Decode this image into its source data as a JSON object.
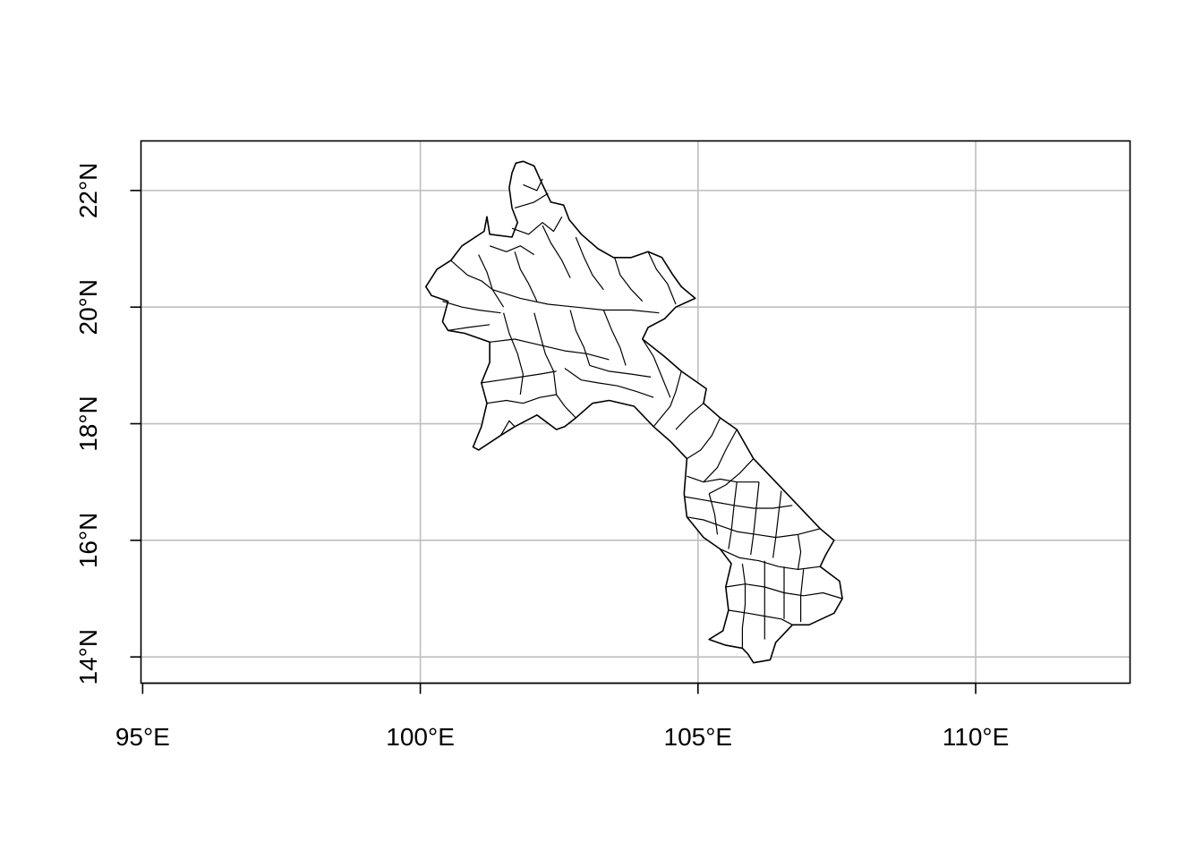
{
  "map": {
    "projection": "longitude-latitude",
    "x_ticks": [
      {
        "value": 95,
        "label": "95°E"
      },
      {
        "value": 100,
        "label": "100°E"
      },
      {
        "value": 105,
        "label": "105°E"
      },
      {
        "value": 110,
        "label": "110°E"
      }
    ],
    "y_ticks": [
      {
        "value": 14,
        "label": "14°N"
      },
      {
        "value": 16,
        "label": "16°N"
      },
      {
        "value": 18,
        "label": "18°N"
      },
      {
        "value": 20,
        "label": "20°N"
      },
      {
        "value": 22,
        "label": "22°N"
      }
    ],
    "xlim": [
      94.97,
      112.78
    ],
    "ylim": [
      13.55,
      22.85
    ],
    "grid": true,
    "colors": {
      "grid": "#bebebe",
      "outline": "#000000",
      "fill": "#ffffff"
    },
    "region_outline": [
      [
        101.72,
        22.47
      ],
      [
        101.85,
        22.5
      ],
      [
        102.05,
        22.42
      ],
      [
        102.2,
        22.1
      ],
      [
        102.35,
        21.8
      ],
      [
        102.58,
        21.75
      ],
      [
        102.68,
        21.5
      ],
      [
        102.9,
        21.25
      ],
      [
        103.2,
        21.0
      ],
      [
        103.48,
        20.85
      ],
      [
        103.8,
        20.85
      ],
      [
        104.1,
        20.95
      ],
      [
        104.35,
        20.85
      ],
      [
        104.55,
        20.55
      ],
      [
        104.7,
        20.35
      ],
      [
        104.95,
        20.15
      ],
      [
        104.6,
        20.0
      ],
      [
        104.4,
        19.8
      ],
      [
        104.1,
        19.65
      ],
      [
        104.0,
        19.45
      ],
      [
        104.4,
        19.15
      ],
      [
        104.7,
        18.9
      ],
      [
        105.15,
        18.6
      ],
      [
        105.1,
        18.35
      ],
      [
        105.4,
        18.1
      ],
      [
        105.7,
        17.9
      ],
      [
        106.0,
        17.4
      ],
      [
        106.3,
        17.1
      ],
      [
        106.6,
        16.8
      ],
      [
        106.9,
        16.5
      ],
      [
        107.2,
        16.2
      ],
      [
        107.45,
        16.0
      ],
      [
        107.3,
        15.75
      ],
      [
        107.2,
        15.55
      ],
      [
        107.55,
        15.3
      ],
      [
        107.6,
        15.0
      ],
      [
        107.45,
        14.75
      ],
      [
        107.0,
        14.55
      ],
      [
        106.7,
        14.55
      ],
      [
        106.5,
        14.35
      ],
      [
        106.4,
        14.25
      ],
      [
        106.3,
        13.95
      ],
      [
        106.0,
        13.9
      ],
      [
        105.9,
        14.05
      ],
      [
        105.8,
        14.15
      ],
      [
        105.5,
        14.2
      ],
      [
        105.2,
        14.3
      ],
      [
        105.45,
        14.45
      ],
      [
        105.55,
        14.8
      ],
      [
        105.5,
        15.2
      ],
      [
        105.6,
        15.6
      ],
      [
        105.4,
        15.85
      ],
      [
        105.1,
        16.05
      ],
      [
        104.8,
        16.4
      ],
      [
        104.75,
        16.8
      ],
      [
        104.8,
        17.4
      ],
      [
        104.5,
        17.7
      ],
      [
        104.2,
        17.95
      ],
      [
        103.85,
        18.3
      ],
      [
        103.4,
        18.4
      ],
      [
        103.1,
        18.35
      ],
      [
        102.8,
        18.1
      ],
      [
        102.6,
        17.95
      ],
      [
        102.45,
        17.9
      ],
      [
        102.1,
        18.15
      ],
      [
        101.7,
        17.95
      ],
      [
        101.45,
        17.8
      ],
      [
        101.05,
        17.55
      ],
      [
        100.95,
        17.6
      ],
      [
        101.1,
        17.95
      ],
      [
        101.2,
        18.35
      ],
      [
        101.1,
        18.7
      ],
      [
        101.25,
        19.05
      ],
      [
        101.25,
        19.4
      ],
      [
        100.8,
        19.55
      ],
      [
        100.5,
        19.6
      ],
      [
        100.4,
        19.75
      ],
      [
        100.5,
        20.1
      ],
      [
        100.2,
        20.2
      ],
      [
        100.1,
        20.35
      ],
      [
        100.3,
        20.65
      ],
      [
        100.55,
        20.8
      ],
      [
        100.75,
        21.05
      ],
      [
        101.15,
        21.3
      ],
      [
        101.2,
        21.55
      ],
      [
        101.25,
        21.25
      ],
      [
        101.65,
        21.2
      ],
      [
        101.75,
        21.45
      ],
      [
        101.65,
        21.7
      ],
      [
        101.6,
        22.05
      ],
      [
        101.65,
        22.3
      ]
    ],
    "district_boundaries": [
      [
        [
          101.7,
          21.7
        ],
        [
          102.05,
          21.8
        ],
        [
          102.3,
          21.95
        ]
      ],
      [
        [
          101.85,
          22.1
        ],
        [
          102.1,
          22.0
        ],
        [
          102.2,
          22.2
        ]
      ],
      [
        [
          101.65,
          21.35
        ],
        [
          101.95,
          21.25
        ],
        [
          102.2,
          21.45
        ],
        [
          102.4,
          21.3
        ],
        [
          102.55,
          21.55
        ]
      ],
      [
        [
          101.25,
          21.05
        ],
        [
          101.55,
          20.95
        ],
        [
          101.8,
          21.05
        ],
        [
          102.05,
          20.9
        ]
      ],
      [
        [
          100.55,
          20.8
        ],
        [
          100.85,
          20.55
        ],
        [
          101.1,
          20.45
        ],
        [
          101.3,
          20.3
        ]
      ],
      [
        [
          100.4,
          20.1
        ],
        [
          100.75,
          20.0
        ],
        [
          101.05,
          19.95
        ],
        [
          101.45,
          19.9
        ]
      ],
      [
        [
          101.05,
          20.9
        ],
        [
          101.2,
          20.6
        ],
        [
          101.3,
          20.3
        ],
        [
          101.5,
          20.0
        ]
      ],
      [
        [
          101.7,
          20.95
        ],
        [
          101.8,
          20.65
        ],
        [
          101.95,
          20.4
        ],
        [
          102.1,
          20.1
        ]
      ],
      [
        [
          102.2,
          21.4
        ],
        [
          102.35,
          21.1
        ],
        [
          102.55,
          20.8
        ],
        [
          102.7,
          20.5
        ]
      ],
      [
        [
          102.8,
          21.2
        ],
        [
          102.95,
          20.85
        ],
        [
          103.1,
          20.55
        ],
        [
          103.3,
          20.3
        ]
      ],
      [
        [
          103.5,
          20.85
        ],
        [
          103.6,
          20.55
        ],
        [
          103.8,
          20.3
        ],
        [
          104.0,
          20.1
        ]
      ],
      [
        [
          104.1,
          20.95
        ],
        [
          104.25,
          20.65
        ],
        [
          104.45,
          20.4
        ],
        [
          104.6,
          20.05
        ]
      ],
      [
        [
          101.3,
          20.3
        ],
        [
          101.8,
          20.15
        ],
        [
          102.3,
          20.05
        ],
        [
          102.8,
          20.0
        ],
        [
          103.3,
          19.95
        ],
        [
          103.8,
          19.95
        ],
        [
          104.3,
          19.9
        ]
      ],
      [
        [
          101.25,
          19.4
        ],
        [
          101.7,
          19.45
        ],
        [
          102.15,
          19.35
        ],
        [
          102.6,
          19.25
        ],
        [
          103.0,
          19.2
        ],
        [
          103.4,
          19.1
        ]
      ],
      [
        [
          101.5,
          19.9
        ],
        [
          101.6,
          19.55
        ],
        [
          101.75,
          19.2
        ],
        [
          101.85,
          18.85
        ],
        [
          101.8,
          18.5
        ]
      ],
      [
        [
          102.05,
          19.9
        ],
        [
          102.15,
          19.55
        ],
        [
          102.25,
          19.2
        ],
        [
          102.4,
          18.9
        ],
        [
          102.45,
          18.5
        ]
      ],
      [
        [
          102.7,
          19.95
        ],
        [
          102.8,
          19.6
        ],
        [
          102.95,
          19.3
        ],
        [
          103.05,
          19.0
        ]
      ],
      [
        [
          103.3,
          19.95
        ],
        [
          103.45,
          19.6
        ],
        [
          103.6,
          19.3
        ],
        [
          103.7,
          19.0
        ]
      ],
      [
        [
          101.2,
          18.35
        ],
        [
          101.55,
          18.4
        ],
        [
          101.85,
          18.35
        ],
        [
          102.15,
          18.45
        ],
        [
          102.45,
          18.5
        ]
      ],
      [
        [
          102.6,
          18.95
        ],
        [
          102.9,
          18.75
        ],
        [
          103.2,
          18.7
        ],
        [
          103.55,
          18.65
        ],
        [
          103.9,
          18.55
        ],
        [
          104.2,
          18.45
        ]
      ],
      [
        [
          103.05,
          19.0
        ],
        [
          103.4,
          18.9
        ],
        [
          103.8,
          18.85
        ],
        [
          104.15,
          18.8
        ]
      ],
      [
        [
          102.45,
          18.5
        ],
        [
          102.6,
          18.3
        ],
        [
          102.8,
          18.1
        ]
      ],
      [
        [
          104.0,
          19.45
        ],
        [
          104.2,
          19.15
        ],
        [
          104.35,
          18.8
        ],
        [
          104.5,
          18.45
        ]
      ],
      [
        [
          104.7,
          18.9
        ],
        [
          104.6,
          18.55
        ],
        [
          104.5,
          18.3
        ],
        [
          104.2,
          17.95
        ]
      ],
      [
        [
          105.1,
          18.35
        ],
        [
          104.85,
          18.15
        ],
        [
          104.6,
          17.9
        ]
      ],
      [
        [
          105.4,
          18.1
        ],
        [
          105.25,
          17.8
        ],
        [
          105.05,
          17.55
        ],
        [
          104.8,
          17.4
        ]
      ],
      [
        [
          105.7,
          17.9
        ],
        [
          105.5,
          17.55
        ],
        [
          105.35,
          17.25
        ],
        [
          105.1,
          17.0
        ]
      ],
      [
        [
          106.0,
          17.4
        ],
        [
          105.75,
          17.15
        ],
        [
          105.5,
          16.95
        ],
        [
          105.2,
          16.8
        ]
      ],
      [
        [
          104.8,
          17.1
        ],
        [
          105.1,
          17.0
        ],
        [
          105.4,
          17.05
        ],
        [
          105.7,
          17.0
        ],
        [
          106.1,
          17.0
        ]
      ],
      [
        [
          104.75,
          16.75
        ],
        [
          105.05,
          16.7
        ],
        [
          105.35,
          16.65
        ],
        [
          105.65,
          16.6
        ],
        [
          106.0,
          16.55
        ],
        [
          106.35,
          16.55
        ],
        [
          106.7,
          16.6
        ]
      ],
      [
        [
          104.8,
          16.4
        ],
        [
          105.1,
          16.35
        ],
        [
          105.4,
          16.25
        ],
        [
          105.7,
          16.15
        ],
        [
          106.05,
          16.1
        ],
        [
          106.4,
          16.05
        ],
        [
          106.8,
          16.1
        ],
        [
          107.2,
          16.2
        ]
      ],
      [
        [
          105.2,
          16.8
        ],
        [
          105.3,
          16.45
        ],
        [
          105.35,
          16.1
        ]
      ],
      [
        [
          105.7,
          17.0
        ],
        [
          105.65,
          16.6
        ],
        [
          105.6,
          16.15
        ],
        [
          105.55,
          15.85
        ]
      ],
      [
        [
          106.1,
          17.0
        ],
        [
          106.05,
          16.55
        ],
        [
          106.0,
          16.1
        ],
        [
          105.95,
          15.75
        ]
      ],
      [
        [
          106.5,
          16.85
        ],
        [
          106.45,
          16.45
        ],
        [
          106.4,
          16.05
        ],
        [
          106.35,
          15.7
        ]
      ],
      [
        [
          105.4,
          15.85
        ],
        [
          105.75,
          15.7
        ],
        [
          106.1,
          15.65
        ],
        [
          106.45,
          15.55
        ],
        [
          106.8,
          15.5
        ],
        [
          107.2,
          15.55
        ]
      ],
      [
        [
          105.5,
          15.2
        ],
        [
          105.85,
          15.25
        ],
        [
          106.2,
          15.2
        ],
        [
          106.55,
          15.1
        ],
        [
          106.9,
          15.05
        ],
        [
          107.25,
          15.1
        ],
        [
          107.6,
          15.0
        ]
      ],
      [
        [
          105.55,
          14.8
        ],
        [
          105.9,
          14.75
        ],
        [
          106.2,
          14.7
        ],
        [
          106.5,
          14.65
        ],
        [
          106.7,
          14.55
        ]
      ],
      [
        [
          105.8,
          15.6
        ],
        [
          105.85,
          15.25
        ],
        [
          105.85,
          14.9
        ],
        [
          105.8,
          14.5
        ],
        [
          105.8,
          14.15
        ]
      ],
      [
        [
          106.2,
          15.65
        ],
        [
          106.2,
          15.2
        ],
        [
          106.2,
          14.7
        ],
        [
          106.2,
          14.3
        ]
      ],
      [
        [
          106.55,
          15.55
        ],
        [
          106.55,
          15.1
        ],
        [
          106.55,
          14.65
        ]
      ],
      [
        [
          106.9,
          15.5
        ],
        [
          106.85,
          15.05
        ],
        [
          106.85,
          14.6
        ]
      ],
      [
        [
          106.8,
          16.1
        ],
        [
          106.85,
          15.8
        ],
        [
          106.8,
          15.5
        ]
      ],
      [
        [
          101.45,
          17.8
        ],
        [
          101.6,
          18.05
        ],
        [
          101.7,
          17.95
        ]
      ],
      [
        [
          101.1,
          18.7
        ],
        [
          101.45,
          18.75
        ],
        [
          101.8,
          18.8
        ],
        [
          102.15,
          18.85
        ],
        [
          102.45,
          18.9
        ]
      ],
      [
        [
          100.5,
          19.6
        ],
        [
          100.85,
          19.65
        ],
        [
          101.25,
          19.7
        ]
      ]
    ]
  }
}
